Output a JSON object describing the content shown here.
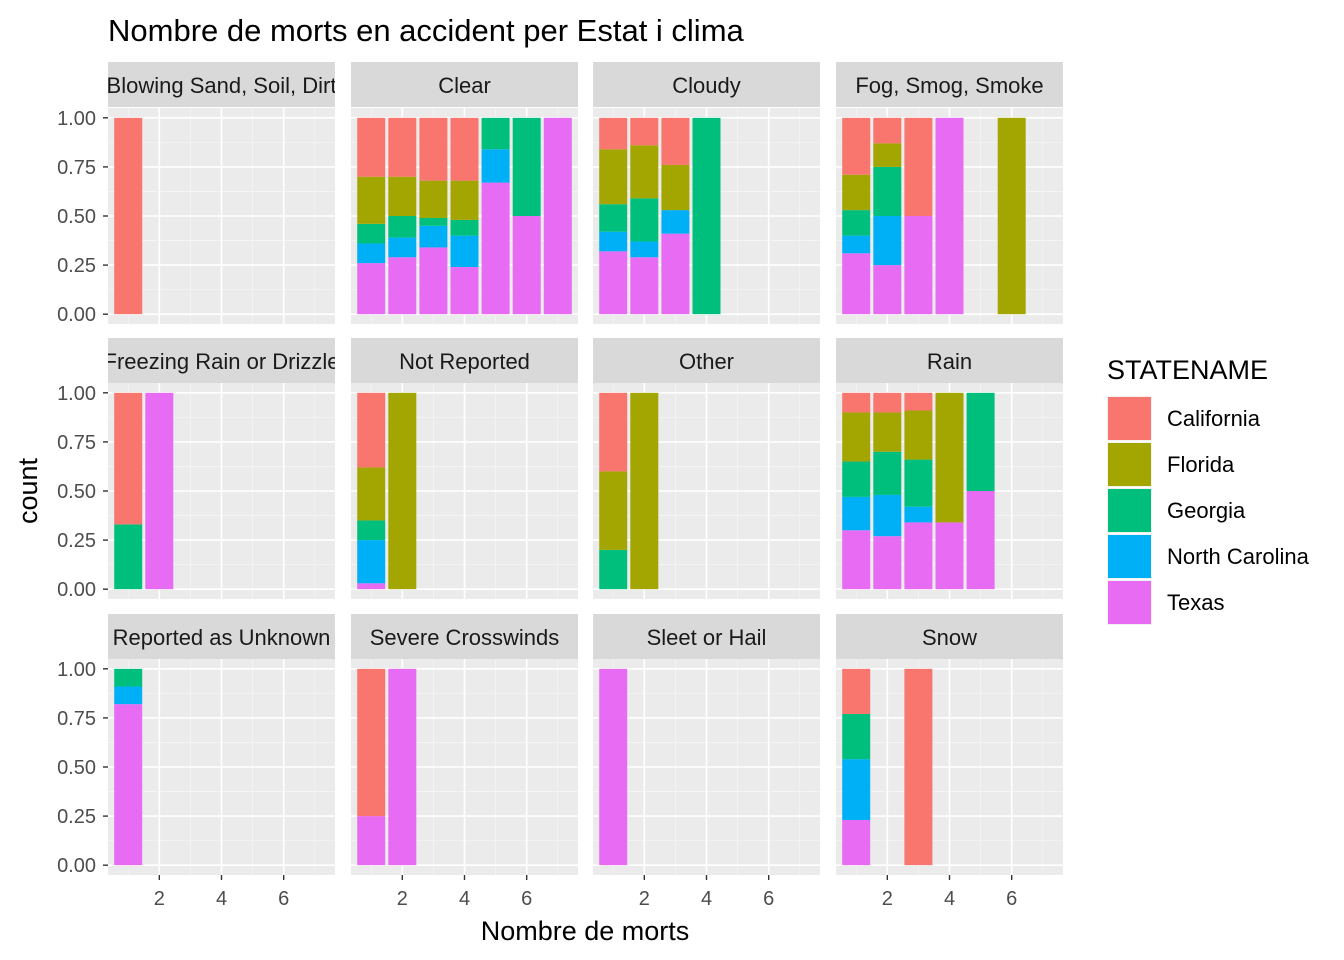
{
  "chart_data": {
    "type": "bar",
    "title": "Nombre de morts en accident per Estat i clima",
    "xlabel": "Nombre de morts",
    "ylabel": "count",
    "xlim": [
      0.35,
      7.65
    ],
    "ylim": [
      -0.05,
      1.05
    ],
    "x_ticks": [
      2,
      4,
      6
    ],
    "y_ticks": [
      0,
      0.25,
      0.5,
      0.75,
      1
    ],
    "y_tick_labels": [
      "0.00",
      "0.25",
      "0.50",
      "0.75",
      "1.00"
    ],
    "position": "fill",
    "grid": true,
    "legend": {
      "title": "STATENAME",
      "placement": "right",
      "entries": [
        "California",
        "Florida",
        "Georgia",
        "North Carolina",
        "Texas"
      ]
    },
    "colors": {
      "California": "#F8766D",
      "Florida": "#A3A500",
      "Georgia": "#00BF7D",
      "North Carolina": "#00B0F6",
      "Texas": "#E76BF3"
    },
    "stack_order_top_to_bottom": [
      "California",
      "Florida",
      "Georgia",
      "North Carolina",
      "Texas"
    ],
    "facets": [
      {
        "label": "Blowing Sand, Soil, Dirt",
        "bars": [
          {
            "x": 1,
            "California": 1.0
          }
        ]
      },
      {
        "label": "Clear",
        "bars": [
          {
            "x": 1,
            "California": 0.3,
            "Florida": 0.24,
            "Georgia": 0.1,
            "North Carolina": 0.1,
            "Texas": 0.26
          },
          {
            "x": 2,
            "California": 0.3,
            "Florida": 0.2,
            "Georgia": 0.11,
            "North Carolina": 0.1,
            "Texas": 0.29
          },
          {
            "x": 3,
            "California": 0.32,
            "Florida": 0.19,
            "Georgia": 0.04,
            "North Carolina": 0.11,
            "Texas": 0.34
          },
          {
            "x": 4,
            "California": 0.32,
            "Florida": 0.2,
            "Georgia": 0.08,
            "North Carolina": 0.16,
            "Texas": 0.24
          },
          {
            "x": 5,
            "Georgia": 0.16,
            "North Carolina": 0.17,
            "Texas": 0.67
          },
          {
            "x": 6,
            "Georgia": 0.5,
            "Texas": 0.5
          },
          {
            "x": 7,
            "Texas": 1.0
          }
        ]
      },
      {
        "label": "Cloudy",
        "bars": [
          {
            "x": 1,
            "California": 0.16,
            "Florida": 0.28,
            "Georgia": 0.14,
            "North Carolina": 0.1,
            "Texas": 0.32
          },
          {
            "x": 2,
            "California": 0.14,
            "Florida": 0.27,
            "Georgia": 0.22,
            "North Carolina": 0.08,
            "Texas": 0.29
          },
          {
            "x": 3,
            "California": 0.24,
            "Florida": 0.23,
            "Georgia": 0.0,
            "North Carolina": 0.12,
            "Texas": 0.41
          },
          {
            "x": 4,
            "Georgia": 1.0
          }
        ]
      },
      {
        "label": "Fog, Smog, Smoke",
        "bars": [
          {
            "x": 1,
            "California": 0.29,
            "Florida": 0.18,
            "Georgia": 0.13,
            "North Carolina": 0.09,
            "Texas": 0.31
          },
          {
            "x": 2,
            "California": 0.13,
            "Florida": 0.12,
            "Georgia": 0.25,
            "North Carolina": 0.25,
            "Texas": 0.25
          },
          {
            "x": 3,
            "California": 0.5,
            "Texas": 0.5
          },
          {
            "x": 4,
            "Texas": 1.0
          },
          {
            "x": 6,
            "Florida": 1.0
          }
        ]
      },
      {
        "label": "Freezing Rain or Drizzle",
        "bars": [
          {
            "x": 1,
            "California": 0.67,
            "Georgia": 0.33
          },
          {
            "x": 2,
            "Texas": 1.0
          }
        ]
      },
      {
        "label": "Not Reported",
        "bars": [
          {
            "x": 1,
            "California": 0.38,
            "Florida": 0.27,
            "Georgia": 0.1,
            "North Carolina": 0.22,
            "Texas": 0.03
          },
          {
            "x": 2,
            "Florida": 1.0
          }
        ]
      },
      {
        "label": "Other",
        "bars": [
          {
            "x": 1,
            "California": 0.4,
            "Florida": 0.4,
            "Georgia": 0.2
          },
          {
            "x": 2,
            "Florida": 1.0
          }
        ]
      },
      {
        "label": "Rain",
        "bars": [
          {
            "x": 1,
            "California": 0.1,
            "Florida": 0.25,
            "Georgia": 0.18,
            "North Carolina": 0.17,
            "Texas": 0.3
          },
          {
            "x": 2,
            "California": 0.1,
            "Florida": 0.2,
            "Georgia": 0.22,
            "North Carolina": 0.21,
            "Texas": 0.27
          },
          {
            "x": 3,
            "California": 0.09,
            "Florida": 0.25,
            "Georgia": 0.24,
            "North Carolina": 0.08,
            "Texas": 0.34
          },
          {
            "x": 4,
            "Florida": 0.66,
            "Texas": 0.34
          },
          {
            "x": 5,
            "Georgia": 0.5,
            "Texas": 0.5
          }
        ]
      },
      {
        "label": "Reported as Unknown",
        "bars": [
          {
            "x": 1,
            "Georgia": 0.09,
            "North Carolina": 0.09,
            "Texas": 0.82
          }
        ]
      },
      {
        "label": "Severe Crosswinds",
        "bars": [
          {
            "x": 1,
            "California": 0.75,
            "Texas": 0.25
          },
          {
            "x": 2,
            "Texas": 1.0
          }
        ]
      },
      {
        "label": "Sleet or Hail",
        "bars": [
          {
            "x": 1,
            "Texas": 1.0
          }
        ]
      },
      {
        "label": "Snow",
        "bars": [
          {
            "x": 1,
            "California": 0.23,
            "Georgia": 0.23,
            "North Carolina": 0.31,
            "Texas": 0.23
          },
          {
            "x": 3,
            "California": 1.0
          }
        ]
      }
    ]
  }
}
